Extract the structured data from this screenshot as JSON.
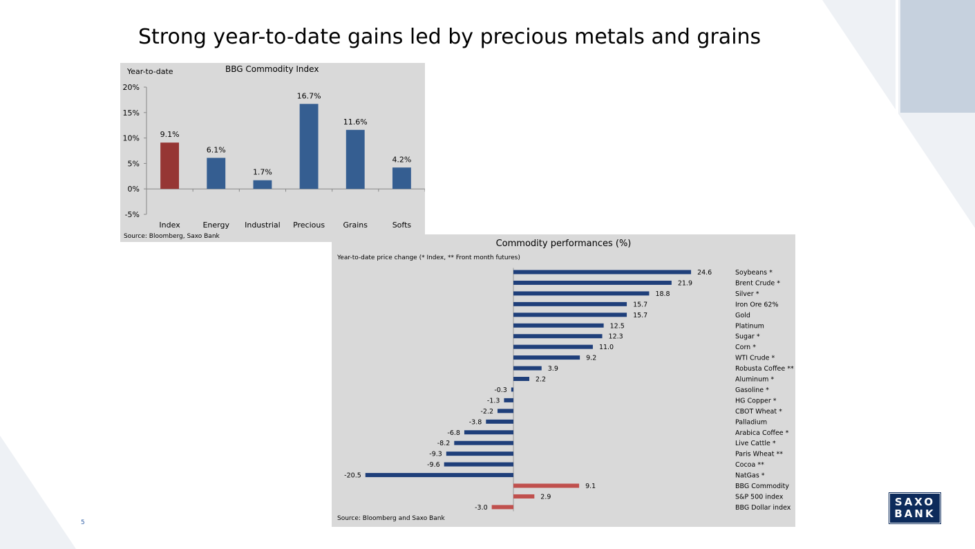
{
  "slide": {
    "title": "Strong year-to-date gains led by precious metals and grains",
    "page_number": "5",
    "logo": {
      "line1": "SAXO",
      "line2": "BANK"
    },
    "colors": {
      "logo": "#0d2b5b",
      "accent": "#2f5fa6"
    }
  },
  "chart_data": [
    {
      "type": "bar",
      "title": "BBG Commodity Index",
      "corner_label": "Year-to-date",
      "source": "Source: Bloomberg, Saxo Bank",
      "categories": [
        "Index",
        "Energy",
        "Industrial",
        "Precious",
        "Grains",
        "Softs"
      ],
      "values": [
        9.1,
        6.1,
        1.7,
        16.7,
        11.6,
        4.2
      ],
      "value_labels": [
        "9.1%",
        "6.1%",
        "1.7%",
        "16.7%",
        "11.6%",
        "4.2%"
      ],
      "y_ticks": [
        -5,
        0,
        5,
        10,
        15,
        20
      ],
      "y_tick_labels": [
        "-5%",
        "0%",
        "5%",
        "10%",
        "15%",
        "20%"
      ],
      "ylim": [
        -5,
        20
      ],
      "colors": [
        "#963634",
        "#355e91",
        "#355e91",
        "#355e91",
        "#355e91",
        "#355e91"
      ],
      "grid": false
    },
    {
      "type": "bar",
      "orientation": "horizontal",
      "title": "Commodity performances (%)",
      "subtitle": "Year-to-date price change (* Index, ** Front month futures)",
      "source": "Source: Bloomberg and Saxo Bank",
      "categories": [
        "Soybeans *",
        "Brent Crude *",
        "Silver *",
        "Iron Ore 62%",
        "Gold",
        "Platinum",
        "Sugar *",
        "Corn *",
        "WTI Crude *",
        "Robusta Coffee **",
        "Aluminum *",
        "Gasoline *",
        "HG Copper *",
        "CBOT Wheat *",
        "Palladium",
        "Arabica Coffee *",
        "Live Cattle *",
        "Paris Wheat **",
        "Cocoa **",
        "NatGas *",
        "BBG Commodity",
        "S&P 500 index",
        "BBG Dollar index"
      ],
      "values": [
        24.6,
        21.9,
        18.8,
        15.7,
        15.7,
        12.5,
        12.3,
        11.0,
        9.2,
        3.9,
        2.2,
        -0.3,
        -1.3,
        -2.2,
        -3.8,
        -6.8,
        -8.2,
        -9.3,
        -9.6,
        -20.5,
        9.1,
        2.9,
        -3.0
      ],
      "value_labels": [
        "24.6",
        "21.9",
        "18.8",
        "15.7",
        "15.7",
        "12.5",
        "12.3",
        "11.0",
        "9.2",
        "3.9",
        "2.2",
        "-0.3",
        "-1.3",
        "-2.2",
        "-3.8",
        "-6.8",
        "-8.2",
        "-9.3",
        "-9.6",
        "-20.5",
        "9.1",
        "2.9",
        "-3.0"
      ],
      "highlighted": [
        "BBG Commodity",
        "S&P 500 index",
        "BBG Dollar index"
      ],
      "colors": {
        "default": "#1f3f7a",
        "highlight": "#c0504d"
      },
      "xlim": [
        -20.5,
        24.6
      ],
      "grid": false
    }
  ]
}
